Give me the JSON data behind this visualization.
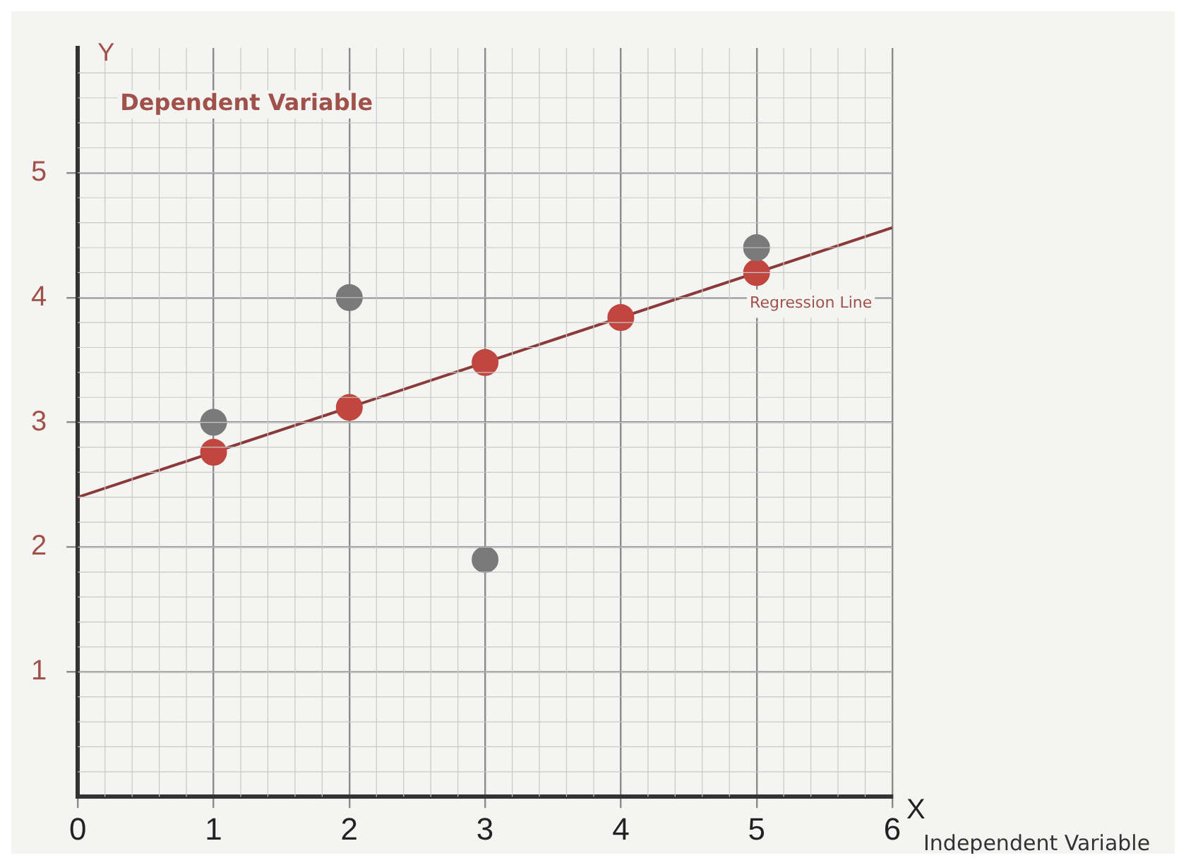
{
  "chart_data": {
    "type": "scatter",
    "xlabel": "X",
    "ylabel": "Y",
    "annotations": [
      "Dependent Variable",
      "Independent Variable",
      "Regression Line"
    ],
    "xlim": [
      0,
      6
    ],
    "ylim": [
      0,
      6
    ],
    "xticks": [
      0,
      1,
      2,
      3,
      4,
      5,
      6
    ],
    "yticks": [
      1,
      2,
      3,
      4,
      5
    ],
    "grid": true,
    "legend": false,
    "marker": "circle",
    "series": [
      {
        "color": "#7a7a7a",
        "x": [
          1,
          2,
          3,
          5
        ],
        "values": [
          3,
          4,
          1.9,
          4.4
        ]
      },
      {
        "type": "line",
        "color": "#8b3a3a",
        "x": [
          0,
          6
        ],
        "values": [
          2.4,
          4.56
        ],
        "marker": "none",
        "line_style": "solid"
      },
      {
        "color": "#c0463f",
        "x": [
          1,
          2,
          3,
          4,
          5
        ],
        "values": [
          2.76,
          3.12,
          3.48,
          3.84,
          4.2
        ]
      }
    ]
  }
}
